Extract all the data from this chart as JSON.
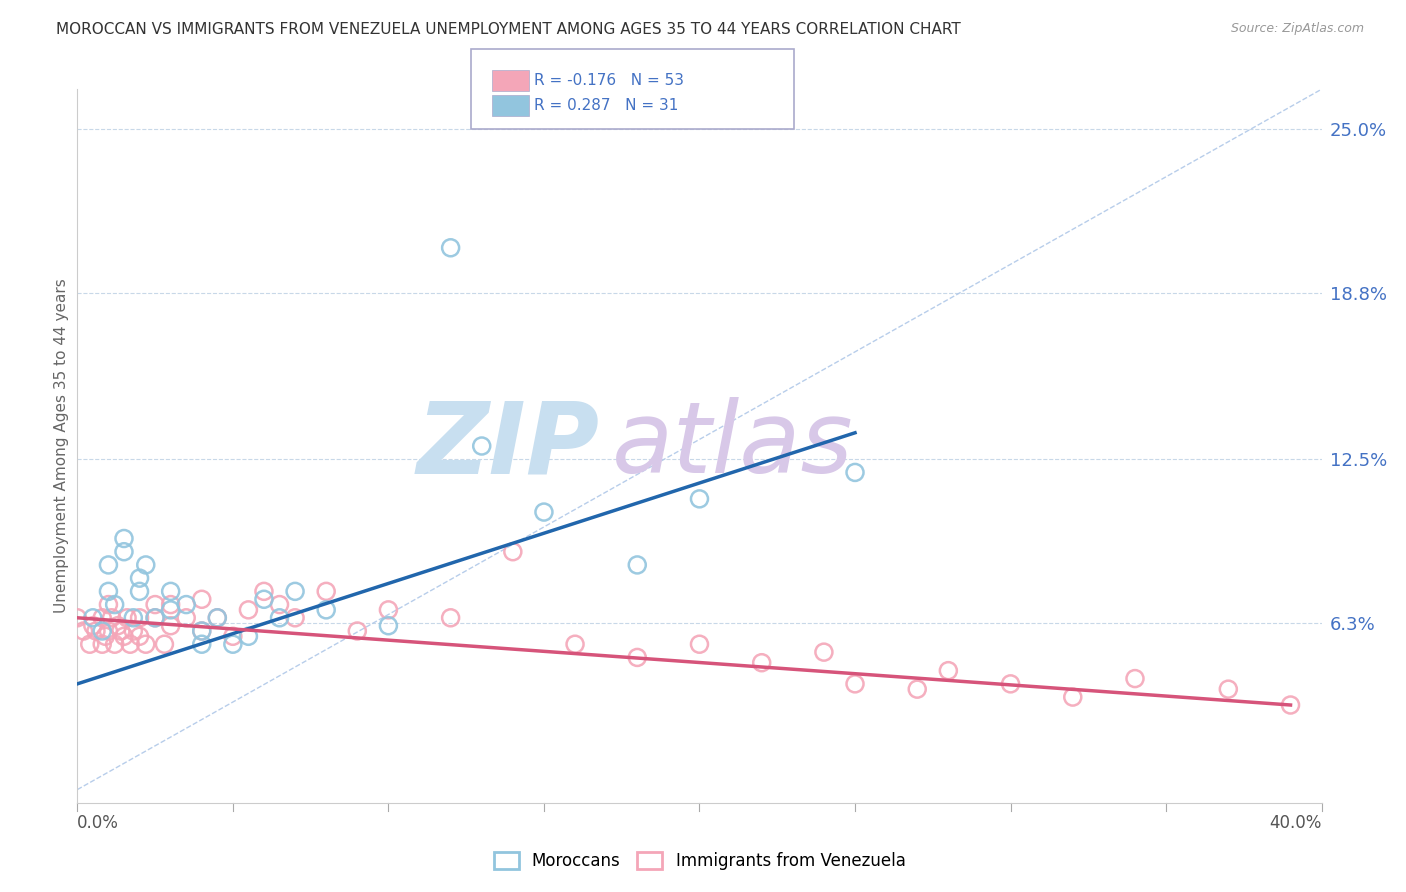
{
  "title": "MOROCCAN VS IMMIGRANTS FROM VENEZUELA UNEMPLOYMENT AMONG AGES 35 TO 44 YEARS CORRELATION CHART",
  "source": "Source: ZipAtlas.com",
  "ylabel_labels": [
    "6.3%",
    "12.5%",
    "18.8%",
    "25.0%"
  ],
  "ylabel_values": [
    0.063,
    0.125,
    0.188,
    0.25
  ],
  "ylabel_text": "Unemployment Among Ages 35 to 44 years",
  "xlim": [
    0.0,
    0.4
  ],
  "ylim": [
    -0.005,
    0.265
  ],
  "legend_entries": [
    {
      "label": "R = 0.287   N = 31",
      "color": "#92c5de"
    },
    {
      "label": "R = -0.176   N = 53",
      "color": "#f4a6b8"
    }
  ],
  "moroccans_color": "#92c5de",
  "venezuela_color": "#f4a6b8",
  "trendline_moroccan_color": "#2166ac",
  "trendline_venezuela_color": "#d6547a",
  "diagonal_line_color": "#b0c8e8",
  "background_color": "#ffffff",
  "watermark_zip_color": "#c8dff0",
  "watermark_atlas_color": "#d8c8e8",
  "moroccans_x": [
    0.005,
    0.008,
    0.01,
    0.01,
    0.012,
    0.015,
    0.015,
    0.018,
    0.02,
    0.02,
    0.022,
    0.025,
    0.03,
    0.03,
    0.035,
    0.04,
    0.04,
    0.045,
    0.05,
    0.055,
    0.06,
    0.065,
    0.07,
    0.08,
    0.1,
    0.12,
    0.13,
    0.15,
    0.18,
    0.2,
    0.25
  ],
  "moroccans_y": [
    0.065,
    0.06,
    0.075,
    0.085,
    0.07,
    0.09,
    0.095,
    0.065,
    0.075,
    0.08,
    0.085,
    0.065,
    0.068,
    0.075,
    0.07,
    0.055,
    0.06,
    0.065,
    0.055,
    0.058,
    0.072,
    0.065,
    0.075,
    0.068,
    0.062,
    0.205,
    0.13,
    0.105,
    0.085,
    0.11,
    0.12
  ],
  "venezuela_x": [
    0.0,
    0.002,
    0.004,
    0.005,
    0.006,
    0.008,
    0.008,
    0.009,
    0.01,
    0.01,
    0.011,
    0.012,
    0.013,
    0.014,
    0.015,
    0.016,
    0.017,
    0.018,
    0.02,
    0.02,
    0.022,
    0.025,
    0.025,
    0.028,
    0.03,
    0.03,
    0.035,
    0.04,
    0.04,
    0.045,
    0.05,
    0.055,
    0.06,
    0.065,
    0.07,
    0.08,
    0.09,
    0.1,
    0.12,
    0.14,
    0.16,
    0.18,
    0.2,
    0.22,
    0.24,
    0.25,
    0.27,
    0.28,
    0.3,
    0.32,
    0.34,
    0.37,
    0.39
  ],
  "venezuela_y": [
    0.065,
    0.06,
    0.055,
    0.062,
    0.06,
    0.055,
    0.065,
    0.058,
    0.06,
    0.07,
    0.065,
    0.055,
    0.062,
    0.06,
    0.058,
    0.065,
    0.055,
    0.06,
    0.058,
    0.065,
    0.055,
    0.07,
    0.065,
    0.055,
    0.062,
    0.07,
    0.065,
    0.072,
    0.06,
    0.065,
    0.058,
    0.068,
    0.075,
    0.07,
    0.065,
    0.075,
    0.06,
    0.068,
    0.065,
    0.09,
    0.055,
    0.05,
    0.055,
    0.048,
    0.052,
    0.04,
    0.038,
    0.045,
    0.04,
    0.035,
    0.042,
    0.038,
    0.032
  ],
  "moroccan_trendline_x": [
    0.0,
    0.25
  ],
  "moroccan_trendline_y": [
    0.04,
    0.135
  ],
  "venezuela_trendline_x": [
    0.0,
    0.39
  ],
  "venezuela_trendline_y": [
    0.065,
    0.032
  ]
}
